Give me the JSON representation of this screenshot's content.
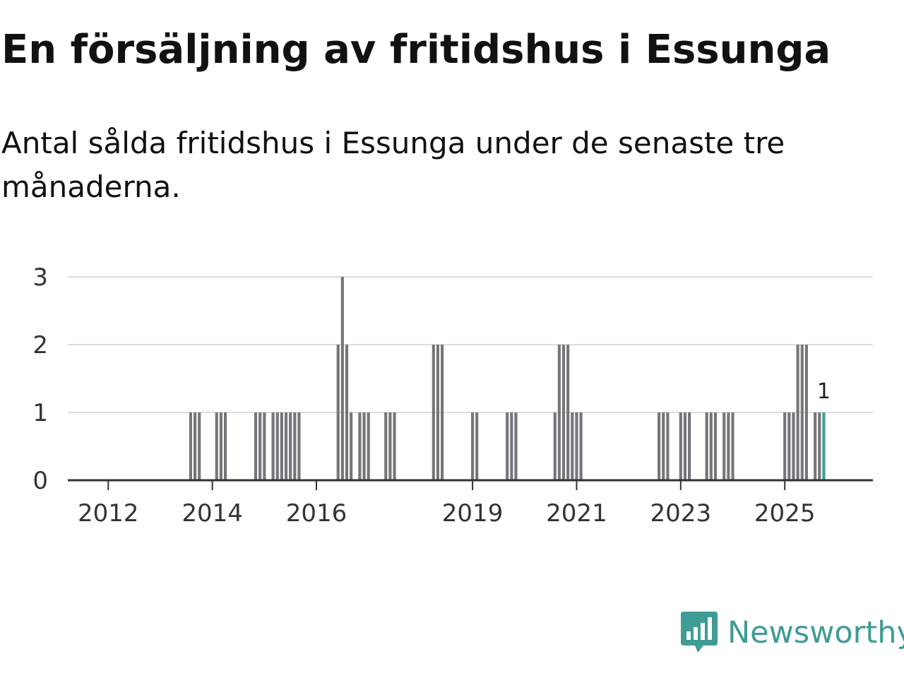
{
  "title": "En försäljning av fritidshus i Essunga",
  "subtitle": "Antal sålda fritidshus i Essunga under de senaste tre månaderna.",
  "brand": {
    "name": "Newsworthy",
    "color": "#3f9c95",
    "icon": "newsworthy-logo-icon"
  },
  "colors": {
    "bar": "#76757b",
    "highlight": "#3a9e96",
    "grid": "#dddddd",
    "axis": "#333333"
  },
  "chart_data": {
    "type": "bar",
    "x_axis": {
      "type": "date",
      "min": "2011-04",
      "max": "2026-09",
      "ticks": [
        "2012",
        "2014",
        "2016",
        "2019",
        "2021",
        "2023",
        "2025"
      ]
    },
    "y_axis": {
      "min": 0,
      "max": 3,
      "ticks": [
        0,
        1,
        2,
        3
      ]
    },
    "grid": true,
    "values": [
      {
        "x": "2013-08",
        "y": 1
      },
      {
        "x": "2013-09",
        "y": 1
      },
      {
        "x": "2013-10",
        "y": 1
      },
      {
        "x": "2014-02",
        "y": 1
      },
      {
        "x": "2014-03",
        "y": 1
      },
      {
        "x": "2014-04",
        "y": 1
      },
      {
        "x": "2014-11",
        "y": 1
      },
      {
        "x": "2014-12",
        "y": 1
      },
      {
        "x": "2015-01",
        "y": 1
      },
      {
        "x": "2015-03",
        "y": 1
      },
      {
        "x": "2015-04",
        "y": 1
      },
      {
        "x": "2015-05",
        "y": 1
      },
      {
        "x": "2015-06",
        "y": 1
      },
      {
        "x": "2015-07",
        "y": 1
      },
      {
        "x": "2015-08",
        "y": 1
      },
      {
        "x": "2015-09",
        "y": 1
      },
      {
        "x": "2016-06",
        "y": 2
      },
      {
        "x": "2016-07",
        "y": 3
      },
      {
        "x": "2016-08",
        "y": 2
      },
      {
        "x": "2016-09",
        "y": 1
      },
      {
        "x": "2016-11",
        "y": 1
      },
      {
        "x": "2016-12",
        "y": 1
      },
      {
        "x": "2017-01",
        "y": 1
      },
      {
        "x": "2017-05",
        "y": 1
      },
      {
        "x": "2017-06",
        "y": 1
      },
      {
        "x": "2017-07",
        "y": 1
      },
      {
        "x": "2018-04",
        "y": 2
      },
      {
        "x": "2018-05",
        "y": 2
      },
      {
        "x": "2018-06",
        "y": 2
      },
      {
        "x": "2019-01",
        "y": 1
      },
      {
        "x": "2019-02",
        "y": 1
      },
      {
        "x": "2019-09",
        "y": 1
      },
      {
        "x": "2019-10",
        "y": 1
      },
      {
        "x": "2019-11",
        "y": 1
      },
      {
        "x": "2020-08",
        "y": 1
      },
      {
        "x": "2020-09",
        "y": 2
      },
      {
        "x": "2020-10",
        "y": 2
      },
      {
        "x": "2020-11",
        "y": 2
      },
      {
        "x": "2020-12",
        "y": 1
      },
      {
        "x": "2021-01",
        "y": 1
      },
      {
        "x": "2021-02",
        "y": 1
      },
      {
        "x": "2022-08",
        "y": 1
      },
      {
        "x": "2022-09",
        "y": 1
      },
      {
        "x": "2022-10",
        "y": 1
      },
      {
        "x": "2023-01",
        "y": 1
      },
      {
        "x": "2023-02",
        "y": 1
      },
      {
        "x": "2023-03",
        "y": 1
      },
      {
        "x": "2023-07",
        "y": 1
      },
      {
        "x": "2023-08",
        "y": 1
      },
      {
        "x": "2023-09",
        "y": 1
      },
      {
        "x": "2023-11",
        "y": 1
      },
      {
        "x": "2023-12",
        "y": 1
      },
      {
        "x": "2024-01",
        "y": 1
      },
      {
        "x": "2025-01",
        "y": 1
      },
      {
        "x": "2025-02",
        "y": 1
      },
      {
        "x": "2025-03",
        "y": 1
      },
      {
        "x": "2025-04",
        "y": 2
      },
      {
        "x": "2025-05",
        "y": 2
      },
      {
        "x": "2025-06",
        "y": 2
      },
      {
        "x": "2025-08",
        "y": 1
      },
      {
        "x": "2025-09",
        "y": 1
      },
      {
        "x": "2025-10",
        "y": 1
      }
    ],
    "highlight": {
      "x": "2025-10",
      "y": 1,
      "label": "1"
    }
  }
}
